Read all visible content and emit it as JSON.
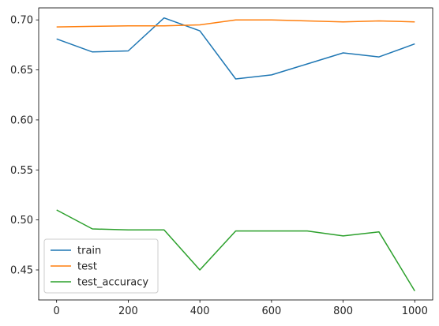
{
  "chart_data": {
    "type": "line",
    "title": "",
    "xlabel": "",
    "ylabel": "",
    "xlim": [
      -50,
      1050
    ],
    "ylim": [
      0.42,
      0.712
    ],
    "xticks": [
      0,
      200,
      400,
      600,
      800,
      1000
    ],
    "xtick_labels": [
      "0",
      "200",
      "400",
      "600",
      "800",
      "1000"
    ],
    "yticks": [
      0.45,
      0.5,
      0.55,
      0.6,
      0.65,
      0.7
    ],
    "ytick_labels": [
      "0.45",
      "0.50",
      "0.55",
      "0.60",
      "0.65",
      "0.70"
    ],
    "grid": false,
    "legend_position": "lower-left",
    "x": [
      0,
      100,
      200,
      300,
      400,
      500,
      600,
      700,
      800,
      900,
      1000
    ],
    "series": [
      {
        "name": "train",
        "color": "#1f77b4",
        "values": [
          0.681,
          0.668,
          0.669,
          0.702,
          0.689,
          0.641,
          0.645,
          0.656,
          0.667,
          0.663,
          0.676
        ]
      },
      {
        "name": "test",
        "color": "#ff7f0e",
        "values": [
          0.693,
          0.6935,
          0.694,
          0.694,
          0.695,
          0.7,
          0.7,
          0.699,
          0.698,
          0.699,
          0.698
        ]
      },
      {
        "name": "test_accuracy",
        "color": "#2ca02c",
        "values": [
          0.51,
          0.491,
          0.49,
          0.49,
          0.45,
          0.489,
          0.489,
          0.489,
          0.484,
          0.488,
          0.429
        ]
      }
    ]
  }
}
